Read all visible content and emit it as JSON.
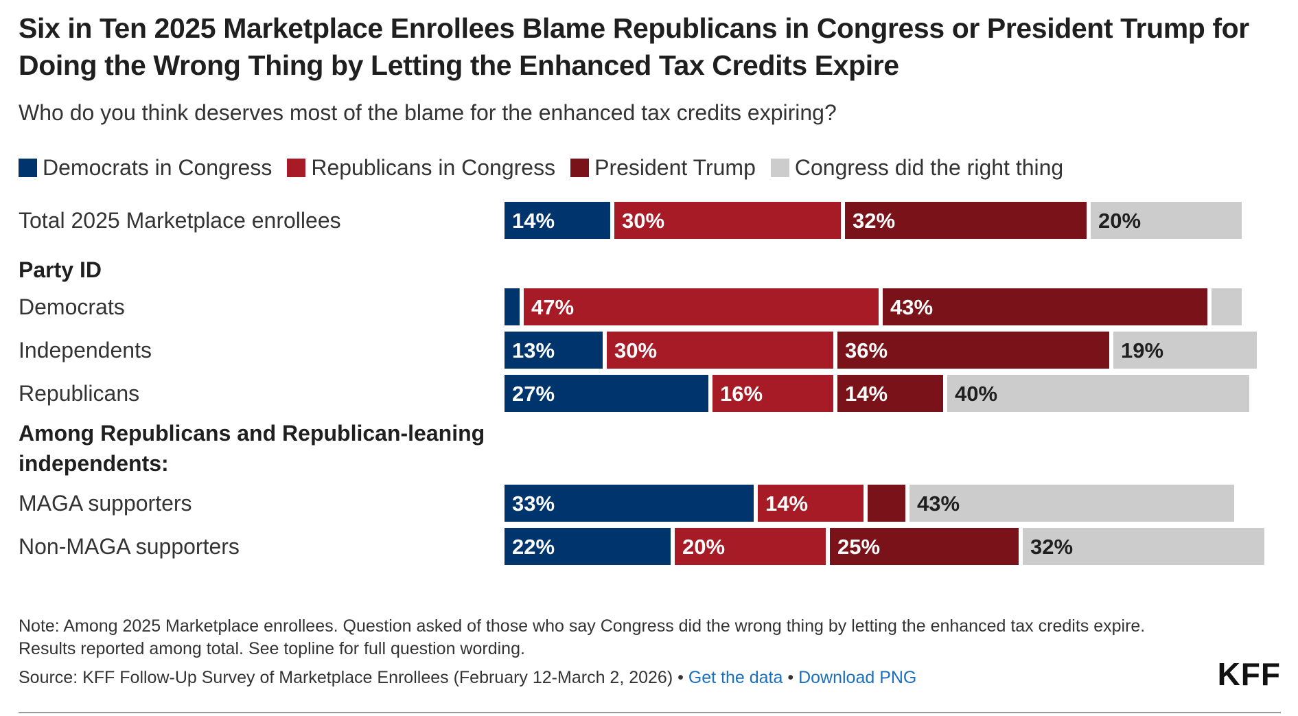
{
  "title": "Six in Ten 2025 Marketplace Enrollees Blame Republicans in Congress or President Trump for Doing the Wrong Thing by Letting the Enhanced Tax Credits Expire",
  "subtitle": "Who do you think deserves most of the blame for the enhanced tax credits expiring?",
  "legend": [
    {
      "label": "Democrats in Congress",
      "color": "#00346c"
    },
    {
      "label": "Republicans in Congress",
      "color": "#a61b25"
    },
    {
      "label": "President Trump",
      "color": "#7a1319"
    },
    {
      "label": "Congress did the right thing",
      "color": "#cccccc"
    }
  ],
  "chart_data": {
    "type": "bar",
    "orientation": "horizontal",
    "stacked": true,
    "title": "Six in Ten 2025 Marketplace Enrollees Blame Republicans in Congress or President Trump for Doing the Wrong Thing by Letting the Enhanced Tax Credits Expire",
    "subtitle": "Who do you think deserves most of the blame for the enhanced tax credits expiring?",
    "value_unit": "%",
    "legend_position": "top-left",
    "series": [
      {
        "name": "Democrats in Congress",
        "color": "#00346c"
      },
      {
        "name": "Republicans in Congress",
        "color": "#a61b25"
      },
      {
        "name": "President Trump",
        "color": "#7a1319"
      },
      {
        "name": "Congress did the right thing",
        "color": "#cccccc"
      }
    ],
    "rows": [
      {
        "kind": "bar",
        "label": "Total 2025 Marketplace enrollees",
        "values": [
          14,
          30,
          32,
          20
        ],
        "labels": [
          "14%",
          "30%",
          "32%",
          "20%"
        ]
      },
      {
        "kind": "header",
        "label": "Party ID"
      },
      {
        "kind": "bar",
        "label": "Democrats",
        "values": [
          2,
          47,
          43,
          4
        ],
        "labels": [
          "",
          "47%",
          "43%",
          ""
        ]
      },
      {
        "kind": "bar",
        "label": "Independents",
        "values": [
          13,
          30,
          36,
          19
        ],
        "labels": [
          "13%",
          "30%",
          "36%",
          "19%"
        ]
      },
      {
        "kind": "bar",
        "label": "Republicans",
        "values": [
          27,
          16,
          14,
          40
        ],
        "labels": [
          "27%",
          "16%",
          "14%",
          "40%"
        ]
      },
      {
        "kind": "header",
        "label": "Among Republicans and Republican-leaning independents:"
      },
      {
        "kind": "bar",
        "label": "MAGA supporters",
        "values": [
          33,
          14,
          5,
          43
        ],
        "labels": [
          "33%",
          "14%",
          "",
          "43%"
        ]
      },
      {
        "kind": "bar",
        "label": "Non-MAGA supporters",
        "values": [
          22,
          20,
          25,
          32
        ],
        "labels": [
          "22%",
          "20%",
          "25%",
          "32%"
        ]
      }
    ]
  },
  "note": "Note: Among 2025 Marketplace enrollees. Question asked of those who say Congress did the wrong thing by letting the enhanced tax credits expire. Results reported among total. See topline for full question wording.",
  "source": {
    "text": "Source: KFF Follow-Up Survey of Marketplace Enrollees (February 12-March 2, 2026)",
    "separator": " • ",
    "get_data_label": "Get the data",
    "download_label": "Download PNG"
  },
  "logo_text": "KFF"
}
